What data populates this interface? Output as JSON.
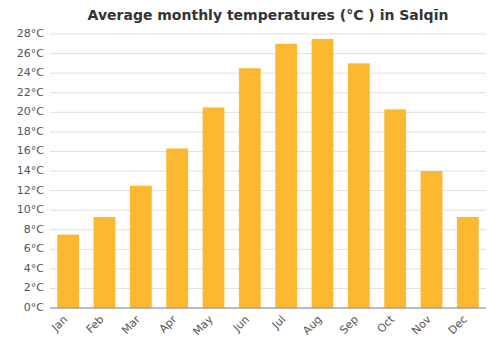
{
  "chart_data": {
    "type": "bar",
    "title": "Average monthly temperatures (°C ) in Salqīn",
    "categories": [
      "Jan",
      "Feb",
      "Mar",
      "Apr",
      "May",
      "Jun",
      "Jul",
      "Aug",
      "Sep",
      "Oct",
      "Nov",
      "Dec"
    ],
    "values": [
      7.5,
      9.3,
      12.5,
      16.3,
      20.5,
      24.5,
      27.0,
      27.5,
      25.0,
      20.3,
      14.0,
      9.3
    ],
    "color": "#FDB831",
    "ylim": [
      0,
      28
    ],
    "yticks": [
      {
        "value": 0,
        "label": "0°C"
      },
      {
        "value": 2,
        "label": "2°C"
      },
      {
        "value": 4,
        "label": "4°C"
      },
      {
        "value": 6,
        "label": "6°C"
      },
      {
        "value": 8,
        "label": "8°C"
      },
      {
        "value": 10,
        "label": "10°C"
      },
      {
        "value": 12,
        "label": "12°C"
      },
      {
        "value": 14,
        "label": "14°C"
      },
      {
        "value": 16,
        "label": "16°C"
      },
      {
        "value": 18,
        "label": "18°C"
      },
      {
        "value": 20,
        "label": "20°C"
      },
      {
        "value": 22,
        "label": "22°C"
      },
      {
        "value": 24,
        "label": "24°C"
      },
      {
        "value": 26,
        "label": "26°C"
      },
      {
        "value": 28,
        "label": "28°C"
      }
    ],
    "grid": true
  }
}
